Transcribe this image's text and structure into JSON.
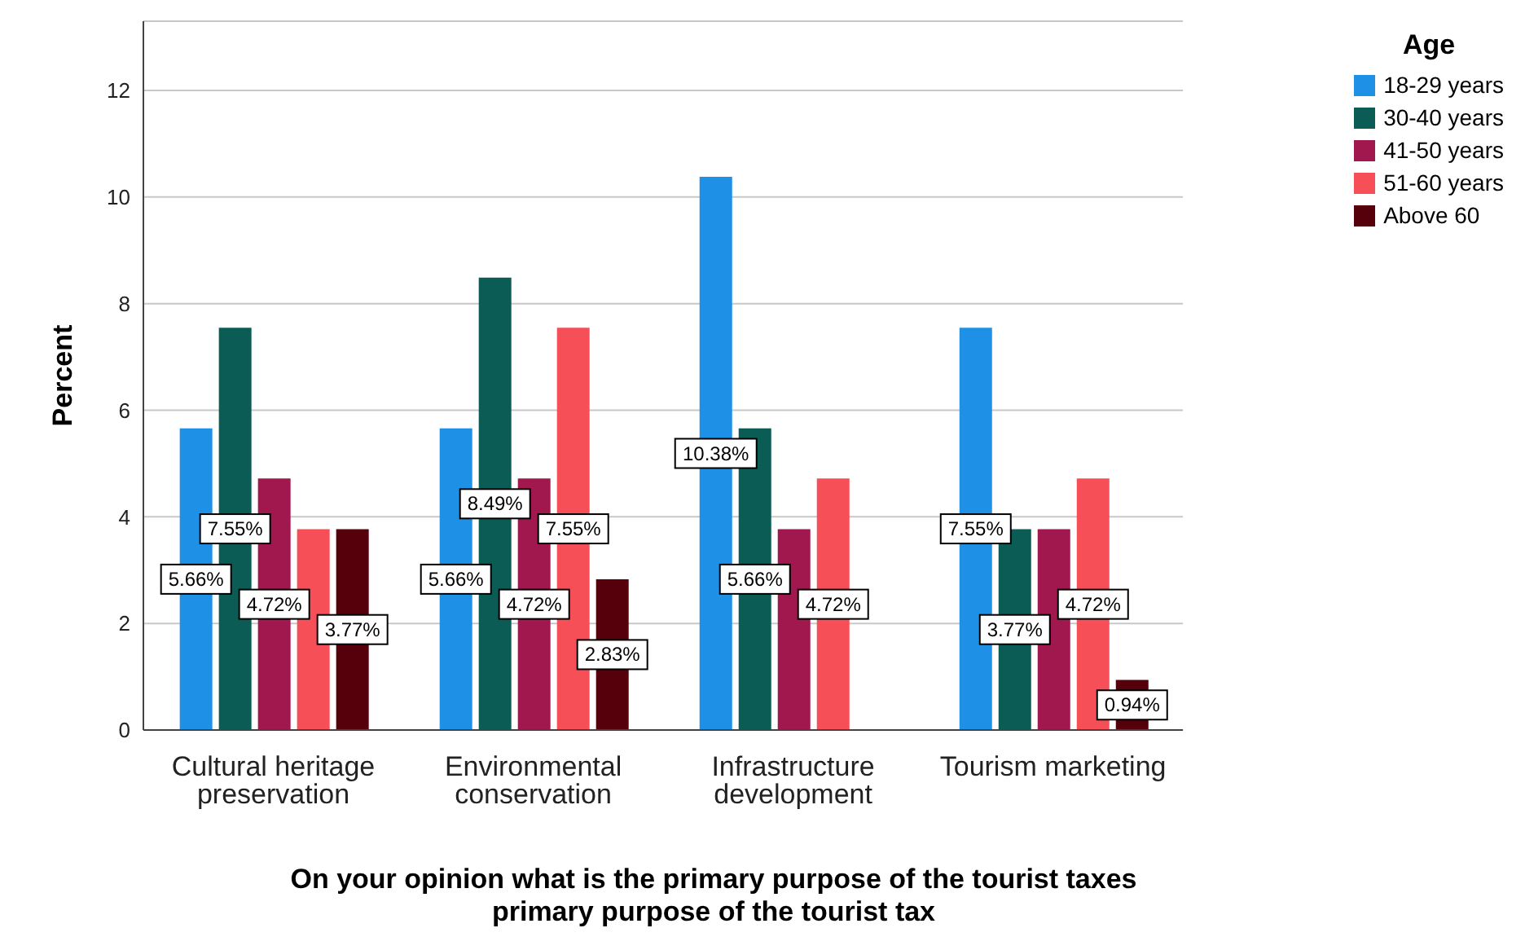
{
  "chart_data": {
    "type": "bar",
    "xlabel": "On your opinion what is the primary purpose of the tourist taxes\nprimary purpose of the tourist tax",
    "ylabel": "Percent",
    "legend_title": "Age",
    "legend": "top right",
    "grid": "y",
    "categories": [
      "Cultural heritage preservation",
      "Environmental conservation",
      "Infrastructure development",
      "Tourism marketing"
    ],
    "ylim": [
      0,
      13.3
    ],
    "yticks": [
      0,
      2,
      4,
      6,
      8,
      10,
      12
    ],
    "series": [
      {
        "name": "18-29 years",
        "color": "#1e90e6",
        "values": [
          5.66,
          5.66,
          10.38,
          7.55
        ],
        "value_labels": [
          "5.66%",
          "5.66%",
          "10.38%",
          "7.55%"
        ]
      },
      {
        "name": "30-40 years",
        "color": "#0b5c55",
        "values": [
          7.55,
          8.49,
          5.66,
          3.77
        ],
        "value_labels": [
          "7.55%",
          "8.49%",
          "5.66%",
          "3.77%"
        ]
      },
      {
        "name": "41-50 years",
        "color": "#a0184e",
        "values": [
          4.72,
          4.72,
          3.77,
          3.77
        ],
        "value_labels": [
          "4.72%",
          "4.72%",
          null,
          null
        ]
      },
      {
        "name": "51-60 years",
        "color": "#f74f58",
        "values": [
          3.77,
          7.55,
          4.72,
          4.72
        ],
        "value_labels": [
          null,
          "7.55%",
          "4.72%",
          "4.72%"
        ]
      },
      {
        "name": "Above 60",
        "color": "#55000a",
        "values": [
          3.77,
          2.83,
          null,
          0.94
        ],
        "value_labels": [
          "3.77%",
          "2.83%",
          null,
          "0.94%"
        ]
      }
    ]
  }
}
